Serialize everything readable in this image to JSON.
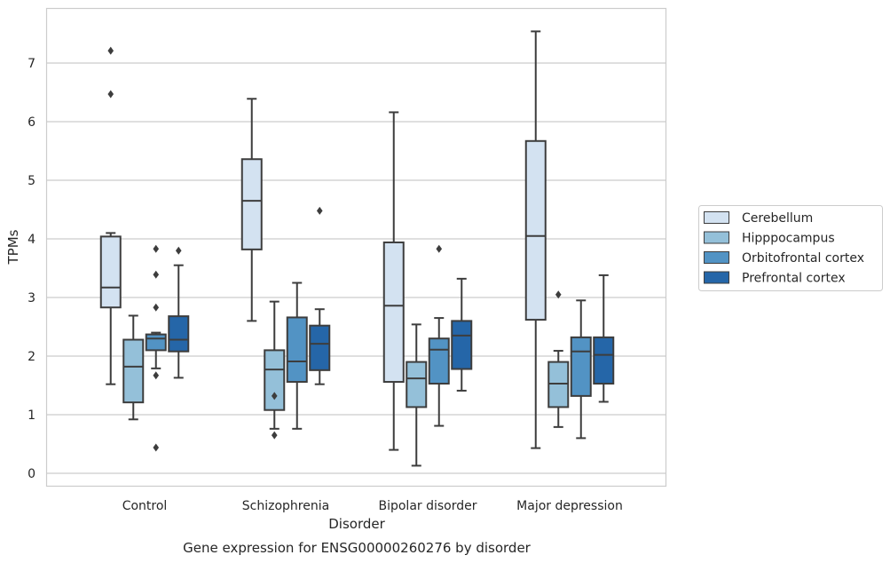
{
  "chart_data": {
    "type": "box",
    "caption": "Gene expression for ENSG00000260276 by disorder",
    "xlabel": "Disorder",
    "ylabel": "TPMs",
    "ylim": [
      -0.22,
      7.85
    ],
    "yticks": [
      0,
      1,
      2,
      3,
      4,
      5,
      6,
      7
    ],
    "grid": "horizontal",
    "legend_position": "right",
    "categories": [
      "Control",
      "Schizophrenia",
      "Bipolar disorder",
      "Major depression"
    ],
    "series": [
      {
        "name": "Cerebellum",
        "color": "#d3e2f1",
        "boxes": [
          {
            "whislo": 1.52,
            "q1": 2.83,
            "med": 3.17,
            "q3": 4.04,
            "whishi": 4.1,
            "fliers": [
              6.47,
              7.21
            ]
          },
          {
            "whislo": 2.6,
            "q1": 3.82,
            "med": 4.65,
            "q3": 5.36,
            "whishi": 6.39,
            "fliers": []
          },
          {
            "whislo": 0.4,
            "q1": 1.56,
            "med": 2.86,
            "q3": 3.94,
            "whishi": 6.16,
            "fliers": []
          },
          {
            "whislo": 0.43,
            "q1": 2.62,
            "med": 4.05,
            "q3": 5.67,
            "whishi": 7.54,
            "fliers": []
          }
        ]
      },
      {
        "name": "Hipppocampus",
        "color": "#94c0d9",
        "boxes": [
          {
            "whislo": 0.92,
            "q1": 1.21,
            "med": 1.82,
            "q3": 2.28,
            "whishi": 2.69,
            "fliers": []
          },
          {
            "whislo": 0.76,
            "q1": 1.08,
            "med": 1.77,
            "q3": 2.1,
            "whishi": 2.93,
            "fliers": [
              0.65,
              1.32
            ]
          },
          {
            "whislo": 0.13,
            "q1": 1.13,
            "med": 1.62,
            "q3": 1.9,
            "whishi": 2.54,
            "fliers": []
          },
          {
            "whislo": 0.79,
            "q1": 1.13,
            "med": 1.53,
            "q3": 1.9,
            "whishi": 2.09,
            "fliers": [
              3.05
            ]
          }
        ]
      },
      {
        "name": "Orbitofrontal cortex",
        "color": "#5293c4",
        "boxes": [
          {
            "whislo": 1.79,
            "q1": 2.1,
            "med": 2.3,
            "q3": 2.37,
            "whishi": 2.4,
            "fliers": [
              0.44,
              1.67,
              2.83,
              3.39,
              3.83
            ]
          },
          {
            "whislo": 0.76,
            "q1": 1.56,
            "med": 1.91,
            "q3": 2.66,
            "whishi": 3.25,
            "fliers": []
          },
          {
            "whislo": 0.81,
            "q1": 1.53,
            "med": 2.11,
            "q3": 2.3,
            "whishi": 2.65,
            "fliers": [
              3.83
            ]
          },
          {
            "whislo": 0.6,
            "q1": 1.32,
            "med": 2.08,
            "q3": 2.32,
            "whishi": 2.95,
            "fliers": []
          }
        ]
      },
      {
        "name": "Prefrontal cortex",
        "color": "#2566a8",
        "boxes": [
          {
            "whislo": 1.63,
            "q1": 2.08,
            "med": 2.28,
            "q3": 2.68,
            "whishi": 3.55,
            "fliers": [
              3.8
            ]
          },
          {
            "whislo": 1.52,
            "q1": 1.76,
            "med": 2.21,
            "q3": 2.52,
            "whishi": 2.8,
            "fliers": [
              4.48
            ]
          },
          {
            "whislo": 1.41,
            "q1": 1.78,
            "med": 2.35,
            "q3": 2.6,
            "whishi": 3.32,
            "fliers": []
          },
          {
            "whislo": 1.22,
            "q1": 1.53,
            "med": 2.02,
            "q3": 2.32,
            "whishi": 3.38,
            "fliers": []
          }
        ]
      }
    ]
  }
}
